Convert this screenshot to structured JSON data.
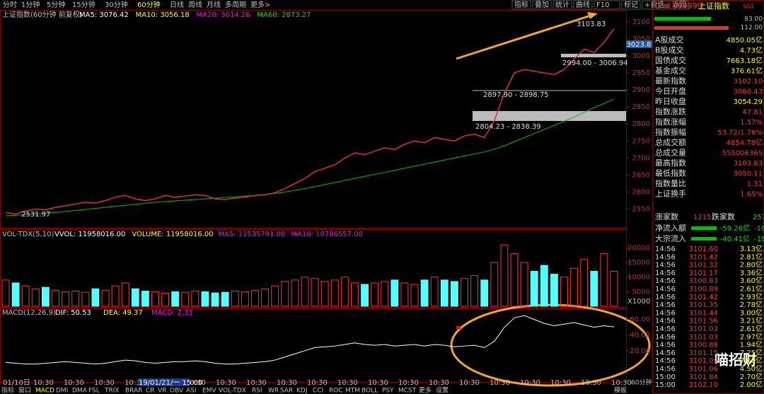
{
  "toolbar": {
    "tabs": [
      "分时",
      "1分钟",
      "5分钟",
      "15分钟",
      "30分钟",
      "60分钟",
      "日线",
      "周线",
      "月线",
      "多周期",
      "更多>"
    ],
    "buttons": [
      "指标",
      "叠加",
      "统计",
      "曲线",
      "F10",
      "标记",
      "+自选",
      "返回"
    ]
  },
  "main": {
    "title": "上证指数(60分钟 前复权)",
    "ma": [
      "MA5: 3076.42",
      "MA10: 3056.18",
      "MA20: 3014.26",
      "MA60: 2873.27"
    ],
    "notes": [
      "3103.83",
      "2994.00 - 3006.94",
      "2897.90 - 2898.75",
      "2804.23 - 2838.39",
      "2531.97"
    ],
    "last": "3023.8",
    "ylim": [
      2495,
      3135
    ],
    "yticks": [
      2550,
      2600,
      2650,
      2700,
      2750,
      2800,
      2850,
      2900,
      2950,
      3000,
      3050,
      3100
    ],
    "close": [
      2540,
      2535,
      2545,
      2550,
      2548,
      2555,
      2560,
      2565,
      2570,
      2568,
      2575,
      2585,
      2590,
      2580,
      2575,
      2580,
      2590,
      2585,
      2588,
      2592,
      2590,
      2580,
      2578,
      2582,
      2585,
      2590,
      2592,
      2598,
      2610,
      2625,
      2640,
      2660,
      2670,
      2680,
      2700,
      2715,
      2710,
      2720,
      2730,
      2725,
      2740,
      2750,
      2745,
      2760,
      2755,
      2750,
      2765,
      2770,
      2760,
      2810,
      2890,
      2950,
      2960,
      2955,
      2950,
      2945,
      2960,
      2990,
      3020,
      3010,
      3040,
      3080
    ],
    "ma60": [
      2530,
      2532,
      2534,
      2536,
      2538,
      2540,
      2543,
      2546,
      2549,
      2552,
      2555,
      2558,
      2561,
      2564,
      2567,
      2570,
      2572,
      2574,
      2576,
      2578,
      2580,
      2582,
      2584,
      2586,
      2588,
      2590,
      2593,
      2596,
      2600,
      2605,
      2610,
      2616,
      2622,
      2628,
      2634,
      2640,
      2646,
      2652,
      2658,
      2664,
      2670,
      2676,
      2682,
      2688,
      2694,
      2700,
      2706,
      2712,
      2718,
      2726,
      2736,
      2748,
      2760,
      2772,
      2784,
      2796,
      2808,
      2820,
      2834,
      2848,
      2860,
      2873
    ]
  },
  "volume": {
    "title": "VOL-TDX(5,10)",
    "items": [
      "VVOL: 11958016.00",
      "VOLUME: 11958016.00",
      "MA5: 11535791.00",
      "MA10: 10786557.00"
    ],
    "unit": "X1000",
    "ylim": [
      0,
      23000
    ],
    "yticks": [
      5000,
      10000,
      15000,
      20000
    ],
    "values": [
      9000,
      8000,
      7000,
      6000,
      6500,
      5500,
      5000,
      5200,
      4800,
      6000,
      5500,
      7000,
      8000,
      6000,
      5200,
      5000,
      4500,
      5000,
      4800,
      5200,
      5000,
      4600,
      4800,
      5200,
      5000,
      5400,
      6000,
      7000,
      8500,
      9000,
      10000,
      9500,
      8500,
      9000,
      10000,
      8000,
      7500,
      8000,
      8500,
      9000,
      8000,
      7500,
      9000,
      10000,
      9000,
      8500,
      9500,
      10500,
      9000,
      15000,
      21000,
      18000,
      15000,
      12000,
      14000,
      11000,
      10000,
      13000,
      16000,
      12000,
      18000,
      12000
    ]
  },
  "macd": {
    "title": "MACD(12,26,9)",
    "items": [
      "DIF: 50.53",
      "DEA: 49.37",
      "MACD: 2.33"
    ],
    "ylim": [
      -20,
      66
    ],
    "yticks": [
      {
        "value": 20,
        "label": "20.00"
      },
      {
        "value": 40,
        "label": "40.00"
      },
      {
        "value": 60,
        "label": "60.00"
      }
    ],
    "dif": [
      5,
      4,
      3,
      3,
      4,
      5,
      6,
      5,
      4,
      3,
      4,
      6,
      8,
      7,
      5,
      4,
      5,
      6,
      6,
      7,
      6,
      4,
      3,
      3,
      4,
      5,
      6,
      8,
      12,
      16,
      20,
      24,
      25,
      26,
      28,
      30,
      28,
      27,
      28,
      26,
      27,
      28,
      26,
      28,
      27,
      25,
      26,
      27,
      24,
      32,
      50,
      62,
      65,
      60,
      55,
      52,
      54,
      56,
      53,
      50,
      52,
      50.53
    ]
  },
  "xaxis": {
    "labels": [
      "01/10日",
      "10:30",
      "10:30",
      "10:30",
      "10:30",
      "10:30",
      "10:30",
      "10:30",
      "10:30",
      "10:30",
      "10:30",
      "10:30",
      "10:30",
      "10:30",
      "10:30",
      "10:30",
      "10:30",
      "10:30",
      "10:30",
      "10:30",
      "10:30"
    ],
    "cursor": "19/01/21/一 15:00"
  },
  "bottom_tabs": [
    "指标",
    "窗口",
    "MACD",
    "DMI",
    "DMA",
    "FSL",
    "TRIX",
    "BRAR",
    "CR",
    "VR",
    "OBV",
    "ASI",
    "EMV",
    "VOL-TDX",
    "RSI",
    "WR",
    "SAR",
    "KDJ",
    "CCI",
    "ROC",
    "MTM",
    "BOLL",
    "PSY",
    "MCST",
    "更多",
    "设置"
  ],
  "bottom_right": [
    "模板",
    "60分钟"
  ],
  "panel": {
    "code": "G ≡ 999999",
    "name": "上证指数",
    "tag": "SG1",
    "bars": [
      "83.00",
      "112.00"
    ],
    "stats": [
      [
        "A股成交",
        "4850.05亿"
      ],
      [
        "B股成交",
        "4.73亿"
      ],
      [
        "国债成交",
        "7663.18亿"
      ],
      [
        "基金成交",
        "376.61亿"
      ],
      [
        "最新指数",
        "3102.10"
      ],
      [
        "今日开盘",
        "3060.43"
      ],
      [
        "昨日收盘",
        "3054.29"
      ],
      [
        "指数涨跌",
        "47.81"
      ],
      [
        "指数涨幅",
        "1.57%"
      ],
      [
        "指数振幅",
        "53.72/1.76%"
      ],
      [
        "总成交额",
        "4854.78亿"
      ],
      [
        "总成交量",
        "555006365"
      ],
      [
        "最高指数",
        "3103.83"
      ],
      [
        "最低指数",
        "3050.11"
      ],
      [
        "指数量比",
        "1.31"
      ],
      [
        "上证换手",
        "1.65%"
      ]
    ],
    "breadth": [
      "涨家数",
      "1215",
      "跌家数",
      "257"
    ],
    "flows": [
      [
        "净流入额",
        "-59.26亿",
        "-19"
      ],
      [
        "大宗流入",
        "-40.41亿",
        "-19"
      ]
    ],
    "ticks": [
      [
        "14:56",
        "3101.60",
        "3.13亿"
      ],
      [
        "14:56",
        "3101.42",
        "2.81亿"
      ],
      [
        "14:56",
        "3101.32",
        "2.80亿"
      ],
      [
        "14:56",
        "3101.17",
        "3.36亿"
      ],
      [
        "14:56",
        "3100.83",
        "3.60亿"
      ],
      [
        "14:56",
        "3100.89",
        "2.61亿"
      ],
      [
        "14:56",
        "3101.42",
        "2.93亿"
      ],
      [
        "14:56",
        "3101.35",
        "2.78亿"
      ],
      [
        "14:56",
        "3101.44",
        "3.00亿"
      ],
      [
        "14:56",
        "3101.56",
        "3.21亿"
      ],
      [
        "14:56",
        "3101.03",
        "2.61亿"
      ],
      [
        "14:56",
        "3101.03",
        "2.97亿"
      ],
      [
        "14:56",
        "3100.88",
        "1.94亿"
      ],
      [
        "14:56",
        "3101.15",
        "7.25亿"
      ],
      [
        "14:56",
        "3101.09",
        "7.60亿"
      ],
      [
        "14:56",
        "3101.06",
        "4.50亿"
      ],
      [
        "15:00",
        "3101.84",
        "2.70亿"
      ],
      [
        "15:00",
        "3102.10",
        "2.00亿"
      ]
    ]
  },
  "watermark": "喵招财"
}
